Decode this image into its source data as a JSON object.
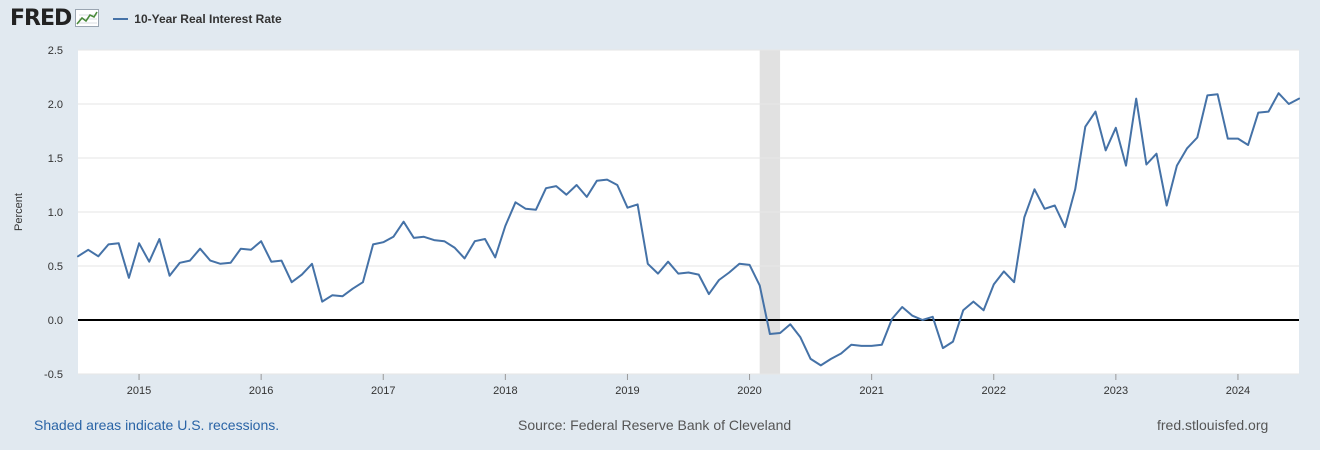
{
  "header": {
    "logo_text": "FRED",
    "legend_label": "10-Year Real Interest Rate"
  },
  "footer": {
    "recession_note": "Shaded areas indicate U.S. recessions.",
    "source": "Source: Federal Reserve Bank of Cleveland",
    "site": "fred.stlouisfed.org"
  },
  "colors": {
    "series": "#4572a7",
    "background": "#e1e9f0",
    "plot": "#ffffff",
    "recession": "#e1e1e1",
    "zero_line": "#000000"
  },
  "chart_data": {
    "type": "line",
    "title": "",
    "xlabel": "",
    "ylabel": "Percent",
    "ylim": [
      -0.5,
      2.5
    ],
    "yticks": [
      "-0.5",
      "0.0",
      "0.5",
      "1.0",
      "1.5",
      "2.0",
      "2.5"
    ],
    "xticks": [
      "2015",
      "2016",
      "2017",
      "2018",
      "2019",
      "2020",
      "2021",
      "2022",
      "2023",
      "2024"
    ],
    "x_range": [
      "2014-07",
      "2024-07"
    ],
    "grid": true,
    "legend_position": "top-left",
    "recessions": [
      {
        "start": "2020-02",
        "end": "2020-04"
      }
    ],
    "series": [
      {
        "name": "10-Year Real Interest Rate",
        "x": [
          "2014-07",
          "2014-08",
          "2014-09",
          "2014-10",
          "2014-11",
          "2014-12",
          "2015-01",
          "2015-02",
          "2015-03",
          "2015-04",
          "2015-05",
          "2015-06",
          "2015-07",
          "2015-08",
          "2015-09",
          "2015-10",
          "2015-11",
          "2015-12",
          "2016-01",
          "2016-02",
          "2016-03",
          "2016-04",
          "2016-05",
          "2016-06",
          "2016-07",
          "2016-08",
          "2016-09",
          "2016-10",
          "2016-11",
          "2016-12",
          "2017-01",
          "2017-02",
          "2017-03",
          "2017-04",
          "2017-05",
          "2017-06",
          "2017-07",
          "2017-08",
          "2017-09",
          "2017-10",
          "2017-11",
          "2017-12",
          "2018-01",
          "2018-02",
          "2018-03",
          "2018-04",
          "2018-05",
          "2018-06",
          "2018-07",
          "2018-08",
          "2018-09",
          "2018-10",
          "2018-11",
          "2018-12",
          "2019-01",
          "2019-02",
          "2019-03",
          "2019-04",
          "2019-05",
          "2019-06",
          "2019-07",
          "2019-08",
          "2019-09",
          "2019-10",
          "2019-11",
          "2019-12",
          "2020-01",
          "2020-02",
          "2020-03",
          "2020-04",
          "2020-05",
          "2020-06",
          "2020-07",
          "2020-08",
          "2020-09",
          "2020-10",
          "2020-11",
          "2020-12",
          "2021-01",
          "2021-02",
          "2021-03",
          "2021-04",
          "2021-05",
          "2021-06",
          "2021-07",
          "2021-08",
          "2021-09",
          "2021-10",
          "2021-11",
          "2021-12",
          "2022-01",
          "2022-02",
          "2022-03",
          "2022-04",
          "2022-05",
          "2022-06",
          "2022-07",
          "2022-08",
          "2022-09",
          "2022-10",
          "2022-11",
          "2022-12",
          "2023-01",
          "2023-02",
          "2023-03",
          "2023-04",
          "2023-05",
          "2023-06",
          "2023-07",
          "2023-08",
          "2023-09",
          "2023-10",
          "2023-11",
          "2023-12",
          "2024-01",
          "2024-02",
          "2024-03",
          "2024-04",
          "2024-05",
          "2024-06",
          "2024-07"
        ],
        "values": [
          0.59,
          0.65,
          0.59,
          0.7,
          0.71,
          0.39,
          0.71,
          0.54,
          0.75,
          0.41,
          0.53,
          0.55,
          0.66,
          0.55,
          0.52,
          0.53,
          0.66,
          0.65,
          0.73,
          0.54,
          0.55,
          0.35,
          0.42,
          0.52,
          0.17,
          0.23,
          0.22,
          0.29,
          0.35,
          0.7,
          0.72,
          0.77,
          0.91,
          0.76,
          0.77,
          0.74,
          0.73,
          0.67,
          0.57,
          0.73,
          0.75,
          0.58,
          0.87,
          1.09,
          1.03,
          1.02,
          1.22,
          1.24,
          1.16,
          1.25,
          1.14,
          1.29,
          1.3,
          1.25,
          1.04,
          1.07,
          0.52,
          0.43,
          0.54,
          0.43,
          0.44,
          0.42,
          0.24,
          0.37,
          0.44,
          0.52,
          0.51,
          0.32,
          -0.13,
          -0.12,
          -0.04,
          -0.16,
          -0.36,
          -0.42,
          -0.36,
          -0.31,
          -0.23,
          -0.24,
          -0.24,
          -0.23,
          0.01,
          0.12,
          0.04,
          0.0,
          0.03,
          -0.26,
          -0.2,
          0.09,
          0.17,
          0.09,
          0.33,
          0.45,
          0.35,
          0.95,
          1.21,
          1.03,
          1.06,
          0.86,
          1.21,
          1.79,
          1.93,
          1.57,
          1.78,
          1.43,
          2.05,
          1.44,
          1.54,
          1.06,
          1.43,
          1.59,
          1.69,
          2.08,
          2.09,
          1.68,
          1.68,
          1.62,
          1.92,
          1.93,
          2.1,
          2.0,
          2.05
        ]
      }
    ]
  }
}
